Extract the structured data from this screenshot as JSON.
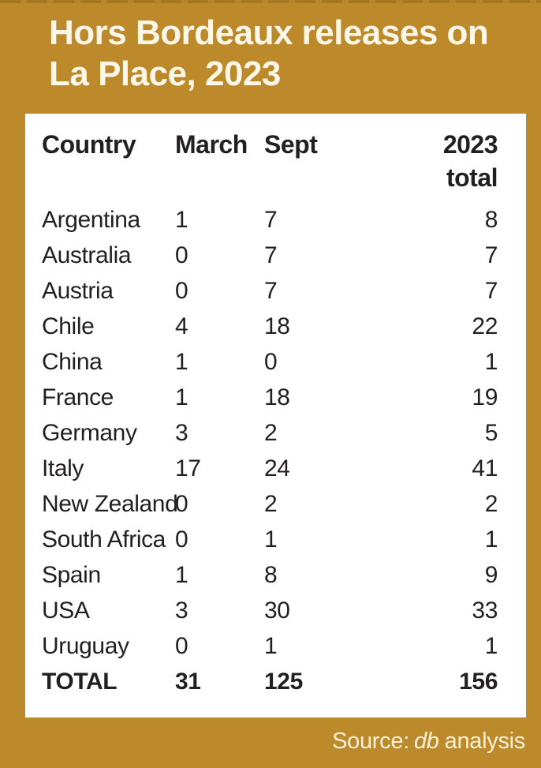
{
  "title": {
    "lines": [
      "Hors Bordeaux releases on",
      "La Place, 2023"
    ]
  },
  "table": {
    "headers": {
      "country": "Country",
      "march": "March",
      "sept": "Sept",
      "total_line1": "2023",
      "total_line2": "total"
    },
    "rows": [
      {
        "country": "Argentina",
        "march": "1",
        "sept": "7",
        "total": "8"
      },
      {
        "country": "Australia",
        "march": "0",
        "sept": "7",
        "total": "7"
      },
      {
        "country": "Austria",
        "march": "0",
        "sept": "7",
        "total": "7"
      },
      {
        "country": "Chile",
        "march": "4",
        "sept": "18",
        "total": "22"
      },
      {
        "country": "China",
        "march": "1",
        "sept": "0",
        "total": "1"
      },
      {
        "country": "France",
        "march": "1",
        "sept": "18",
        "total": "19"
      },
      {
        "country": "Germany",
        "march": "3",
        "sept": "2",
        "total": "5"
      },
      {
        "country": "Italy",
        "march": "17",
        "sept": "24",
        "total": "41"
      },
      {
        "country": "New Zealand",
        "march": "0",
        "sept": "2",
        "total": "2"
      },
      {
        "country": "South Africa",
        "march": "0",
        "sept": "1",
        "total": "1"
      },
      {
        "country": "Spain",
        "march": "1",
        "sept": "8",
        "total": "9"
      },
      {
        "country": "USA",
        "march": "3",
        "sept": "30",
        "total": "33"
      },
      {
        "country": "Uruguay",
        "march": "0",
        "sept": "1",
        "total": "1"
      }
    ],
    "total_row": {
      "country": "TOTAL",
      "march": "31",
      "sept": "125",
      "total": "156"
    }
  },
  "source": {
    "prefix": "Source:",
    "emphasis": "db",
    "suffix": "analysis"
  },
  "colors": {
    "background_gold": "#bd8a2b",
    "panel_white": "#ffffff",
    "text_dark": "#231f20",
    "title_cream": "#fcf7e9",
    "source_cream": "#f9f0d7"
  },
  "chart_data": {
    "type": "table",
    "title": "Hors Bordeaux releases on La Place, 2023",
    "columns": [
      "Country",
      "March",
      "Sept",
      "2023 total"
    ],
    "rows": [
      [
        "Argentina",
        1,
        7,
        8
      ],
      [
        "Australia",
        0,
        7,
        7
      ],
      [
        "Austria",
        0,
        7,
        7
      ],
      [
        "Chile",
        4,
        18,
        22
      ],
      [
        "China",
        1,
        0,
        1
      ],
      [
        "France",
        1,
        18,
        19
      ],
      [
        "Germany",
        3,
        2,
        5
      ],
      [
        "Italy",
        17,
        24,
        41
      ],
      [
        "New Zealand",
        0,
        2,
        2
      ],
      [
        "South Africa",
        0,
        1,
        1
      ],
      [
        "Spain",
        1,
        8,
        9
      ],
      [
        "USA",
        3,
        30,
        33
      ],
      [
        "Uruguay",
        0,
        1,
        1
      ]
    ],
    "totals": [
      "TOTAL",
      31,
      125,
      156
    ],
    "source_note": "Source: db analysis"
  }
}
